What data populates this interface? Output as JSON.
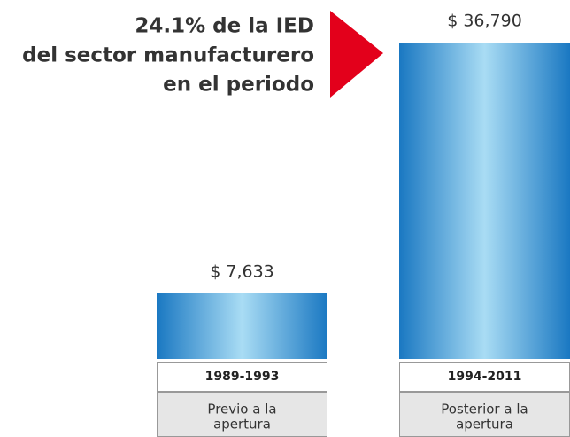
{
  "chart_data": {
    "type": "bar",
    "annotation": [
      "24.1% de la IED",
      "del sector manufacturero",
      "en el periodo"
    ],
    "categories": [
      "1989-1993",
      "1994-2011"
    ],
    "sublabels": [
      [
        "Previo a la",
        "apertura"
      ],
      [
        "Posterior a la",
        "apertura"
      ]
    ],
    "values": [
      7633,
      36790
    ],
    "value_labels": [
      "$ 7,633",
      "$ 36,790"
    ],
    "color_edge": "#1a78c2",
    "color_center": "#a9dcf4"
  }
}
